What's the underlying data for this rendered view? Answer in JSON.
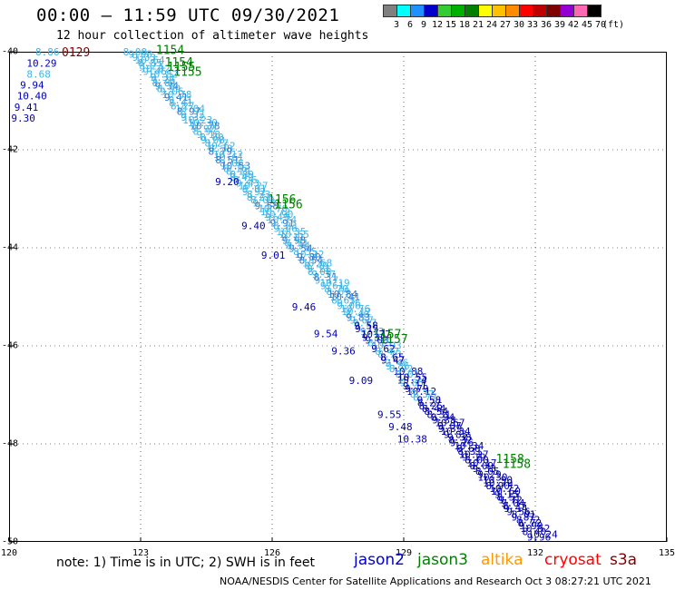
{
  "header": {
    "title": "00:00 — 11:59 UTC 09/30/2021",
    "subtitle": "12 hour collection of altimeter wave heights"
  },
  "colorbar": {
    "unit": "(ft)",
    "colors": [
      "#808080",
      "#00ffff",
      "#1e90ff",
      "#0000cd",
      "#32cd32",
      "#00b000",
      "#008000",
      "#ffff00",
      "#ffc000",
      "#ff8c00",
      "#ff0000",
      "#c00000",
      "#800000",
      "#9400d3",
      "#ff69b4",
      "#000000"
    ],
    "labels": [
      "3",
      "6",
      "9",
      "12",
      "15",
      "18",
      "21",
      "24",
      "27",
      "30",
      "33",
      "36",
      "39",
      "42",
      "45",
      "70"
    ]
  },
  "axes": {
    "lat_labels": [
      "-40",
      "-42",
      "-44",
      "-46",
      "-48",
      "-50"
    ],
    "lon_labels": [
      "120",
      "123",
      "126",
      "129",
      "132",
      "135"
    ],
    "lat_range": [
      -50,
      -40
    ],
    "lon_range": [
      120,
      135
    ]
  },
  "track_colors": {
    "light": "#3fb4e6",
    "mid": "#3377cc",
    "dark": "#0000b4",
    "time": "#008000",
    "cryosat_time": "#800000"
  },
  "data_labels": [
    {
      "lon": 120.6,
      "lat": -40.0,
      "text": "8.86",
      "color": "#3fb4e6"
    },
    {
      "lon": 120.4,
      "lat": -40.23,
      "text": "10.29",
      "color": "#0000b4"
    },
    {
      "lon": 120.4,
      "lat": -40.45,
      "text": "8.68",
      "color": "#3fb4e6"
    },
    {
      "lon": 120.25,
      "lat": -40.68,
      "text": "9.94",
      "color": "#0000b4"
    },
    {
      "lon": 120.18,
      "lat": -40.9,
      "text": "10.40",
      "color": "#0000b4"
    },
    {
      "lon": 120.12,
      "lat": -41.13,
      "text": "9.41",
      "color": "#0000b4"
    },
    {
      "lon": 120.05,
      "lat": -41.35,
      "text": "9.30",
      "color": "#0000b4"
    },
    {
      "lon": 122.6,
      "lat": -40.0,
      "text": "8.00",
      "color": "#3fb4e6"
    },
    {
      "lon": 124.7,
      "lat": -42.65,
      "text": "9.20",
      "color": "#0000b4"
    },
    {
      "lon": 125.3,
      "lat": -43.55,
      "text": "9.40",
      "color": "#0000b4"
    },
    {
      "lon": 125.75,
      "lat": -44.15,
      "text": "9.01",
      "color": "#0000b4"
    },
    {
      "lon": 126.45,
      "lat": -45.2,
      "text": "9.46",
      "color": "#0000b4"
    },
    {
      "lon": 126.95,
      "lat": -45.75,
      "text": "9.54",
      "color": "#0000b4"
    },
    {
      "lon": 127.35,
      "lat": -46.1,
      "text": "9.36",
      "color": "#0000b4"
    },
    {
      "lon": 127.75,
      "lat": -46.7,
      "text": "9.09",
      "color": "#0000b4"
    },
    {
      "lon": 128.4,
      "lat": -47.4,
      "text": "9.55",
      "color": "#0000b4"
    },
    {
      "lon": 128.65,
      "lat": -47.65,
      "text": "9.48",
      "color": "#0000b4"
    },
    {
      "lon": 128.85,
      "lat": -47.9,
      "text": "10.38",
      "color": "#0000b4"
    }
  ],
  "time_labels": [
    {
      "lon": 121.2,
      "lat": -40.0,
      "text": "0129",
      "color": "#800000"
    },
    {
      "lon": 123.35,
      "lat": -39.95,
      "text": "1154",
      "color": "#008000"
    },
    {
      "lon": 123.55,
      "lat": -40.2,
      "text": "1154",
      "color": "#008000"
    },
    {
      "lon": 123.6,
      "lat": -40.3,
      "text": "1155",
      "color": "#008000"
    },
    {
      "lon": 123.75,
      "lat": -40.4,
      "text": "1155",
      "color": "#008000"
    },
    {
      "lon": 125.9,
      "lat": -43.0,
      "text": "1156",
      "color": "#008000"
    },
    {
      "lon": 126.05,
      "lat": -43.1,
      "text": "1156",
      "color": "#008000"
    },
    {
      "lon": 128.3,
      "lat": -45.75,
      "text": "1157",
      "color": "#008000"
    },
    {
      "lon": 128.45,
      "lat": -45.85,
      "text": "1157",
      "color": "#008000"
    },
    {
      "lon": 131.1,
      "lat": -48.3,
      "text": "1158",
      "color": "#008000"
    },
    {
      "lon": 131.25,
      "lat": -48.4,
      "text": "1158",
      "color": "#008000"
    }
  ],
  "legend": {
    "note": "note:  1) Time is in UTC;  2) SWH is in feet",
    "satellites": [
      {
        "name": "jason2",
        "color": "#0000cd"
      },
      {
        "name": "jason3",
        "color": "#008000"
      },
      {
        "name": "altika",
        "color": "#ff9900"
      },
      {
        "name": "cryosat",
        "color": "#ff0000"
      },
      {
        "name": "s3a",
        "color": "#800000"
      }
    ]
  },
  "footer": "NOAA/NESDIS Center for Satellite Applications and Research    Oct  3 08:27:21 UTC 2021"
}
